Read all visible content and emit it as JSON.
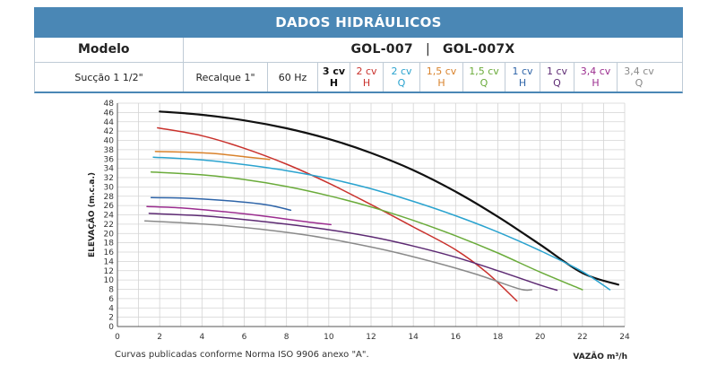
{
  "table": {
    "title": "DADOS HIDRÁULICOS",
    "model_label": "Modelo",
    "model_a": "GOL-007",
    "model_sep": "|",
    "model_b": "GOL-007X",
    "suction": "Sucção 1 1/2\"",
    "discharge": "Recalque 1\"",
    "frequency": "60 Hz",
    "variants": [
      {
        "power": "3 cv",
        "type": "H",
        "color": "#111111",
        "bold": true
      },
      {
        "power": "2 cv",
        "type": "H",
        "color": "#c9312c"
      },
      {
        "power": "2 cv",
        "type": "Q",
        "color": "#2aa3cf"
      },
      {
        "power": "1,5 cv",
        "type": "H",
        "color": "#d9822b"
      },
      {
        "power": "1,5 cv",
        "type": "Q",
        "color": "#6aab3a"
      },
      {
        "power": "1 cv",
        "type": "H",
        "color": "#2e64a8"
      },
      {
        "power": "1 cv",
        "type": "Q",
        "color": "#5d2a73"
      },
      {
        "power": "3,4 cv",
        "type": "H",
        "color": "#9b2d8f"
      },
      {
        "power": "3,4 cv",
        "type": "Q",
        "color": "#8a8a8a"
      }
    ]
  },
  "chart_data": {
    "type": "line",
    "xlabel": "VAZÃO m³/h",
    "ylabel": "ELEVAÇÃO (m.c.a.)",
    "xlim": [
      0,
      24
    ],
    "ylim": [
      0,
      48
    ],
    "xticks": [
      0,
      2,
      4,
      6,
      8,
      10,
      12,
      14,
      16,
      18,
      20,
      22,
      24
    ],
    "yticks": [
      0,
      2,
      4,
      6,
      8,
      10,
      12,
      14,
      16,
      18,
      20,
      22,
      24,
      26,
      28,
      30,
      32,
      34,
      36,
      38,
      40,
      42,
      44,
      46,
      48
    ],
    "grid": true,
    "series": [
      {
        "color": "#111111",
        "width": 2.2,
        "points": [
          [
            2,
            46.2
          ],
          [
            4,
            45.5
          ],
          [
            6,
            44.3
          ],
          [
            8,
            42.6
          ],
          [
            10,
            40.3
          ],
          [
            12,
            37.3
          ],
          [
            14,
            33.6
          ],
          [
            16,
            29.0
          ],
          [
            18,
            23.6
          ],
          [
            20,
            17.6
          ],
          [
            22,
            11.5
          ],
          [
            23.7,
            9.0
          ]
        ]
      },
      {
        "color": "#c9312c",
        "width": 1.5,
        "points": [
          [
            1.9,
            42.7
          ],
          [
            4,
            41.0
          ],
          [
            6,
            38.3
          ],
          [
            8,
            34.9
          ],
          [
            10,
            30.8
          ],
          [
            12,
            26.2
          ],
          [
            14,
            21.4
          ],
          [
            16,
            16.5
          ],
          [
            17.5,
            11.5
          ],
          [
            18.9,
            5.5
          ]
        ]
      },
      {
        "color": "#2aa3cf",
        "width": 1.5,
        "points": [
          [
            1.7,
            36.4
          ],
          [
            4,
            35.8
          ],
          [
            6,
            34.8
          ],
          [
            8,
            33.5
          ],
          [
            10,
            31.8
          ],
          [
            12,
            29.6
          ],
          [
            14,
            26.9
          ],
          [
            16,
            23.8
          ],
          [
            18,
            20.3
          ],
          [
            20,
            16.3
          ],
          [
            22,
            11.8
          ],
          [
            23.3,
            7.9
          ]
        ]
      },
      {
        "color": "#d9822b",
        "width": 1.5,
        "points": [
          [
            1.8,
            37.6
          ],
          [
            3,
            37.5
          ],
          [
            4.5,
            37.2
          ],
          [
            6,
            36.5
          ],
          [
            7.2,
            35.9
          ]
        ]
      },
      {
        "color": "#6aab3a",
        "width": 1.5,
        "points": [
          [
            1.6,
            33.2
          ],
          [
            4,
            32.6
          ],
          [
            6,
            31.6
          ],
          [
            8,
            30.1
          ],
          [
            10,
            28.1
          ],
          [
            12,
            25.7
          ],
          [
            14,
            22.8
          ],
          [
            16,
            19.5
          ],
          [
            18,
            15.8
          ],
          [
            20,
            11.7
          ],
          [
            22,
            7.9
          ]
        ]
      },
      {
        "color": "#2e64a8",
        "width": 1.5,
        "points": [
          [
            1.6,
            27.7
          ],
          [
            3,
            27.6
          ],
          [
            5,
            27.1
          ],
          [
            7,
            26.2
          ],
          [
            8.2,
            25.0
          ]
        ]
      },
      {
        "color": "#5d2a73",
        "width": 1.5,
        "points": [
          [
            1.5,
            24.3
          ],
          [
            4,
            23.8
          ],
          [
            6,
            23.0
          ],
          [
            8,
            22.0
          ],
          [
            10,
            20.8
          ],
          [
            12,
            19.3
          ],
          [
            14,
            17.3
          ],
          [
            16,
            14.9
          ],
          [
            18,
            12.0
          ],
          [
            20,
            8.9
          ],
          [
            20.8,
            7.8
          ]
        ]
      },
      {
        "color": "#9b2d8f",
        "width": 1.5,
        "points": [
          [
            1.4,
            25.8
          ],
          [
            3,
            25.5
          ],
          [
            5,
            24.7
          ],
          [
            7,
            23.7
          ],
          [
            8.6,
            22.7
          ],
          [
            10.1,
            21.9
          ]
        ]
      },
      {
        "color": "#8a8a8a",
        "width": 1.5,
        "points": [
          [
            1.3,
            22.7
          ],
          [
            3,
            22.3
          ],
          [
            5,
            21.7
          ],
          [
            7,
            20.8
          ],
          [
            9,
            19.6
          ],
          [
            11,
            18.0
          ],
          [
            13,
            16.1
          ],
          [
            15,
            13.8
          ],
          [
            17,
            11.2
          ],
          [
            19,
            8.1
          ],
          [
            19.6,
            7.9
          ]
        ]
      }
    ]
  },
  "footnote": "Curvas publicadas conforme Norma ISO 9906 anexo \"A\"."
}
